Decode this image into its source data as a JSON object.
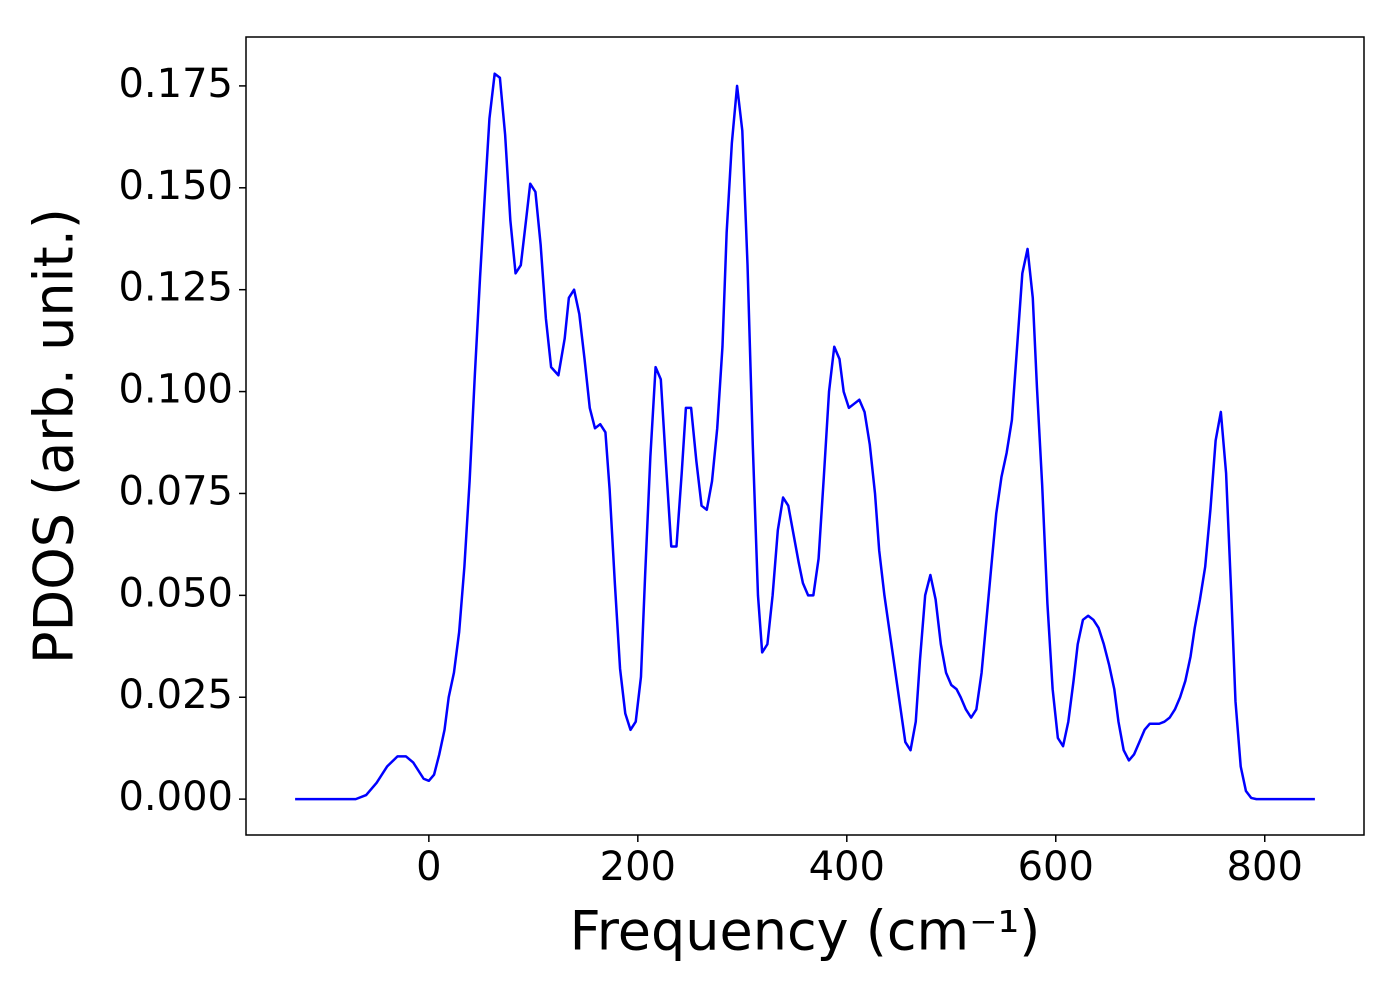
{
  "chart_data": {
    "type": "line",
    "xlabel": "Frequency (cm⁻¹)",
    "ylabel": "PDOS (arb. unit.)",
    "color": "#0000ff",
    "xlim": [
      -175,
      895
    ],
    "ylim": [
      -0.0088,
      0.187
    ],
    "xticks": [
      0,
      200,
      400,
      600,
      800
    ],
    "yticks": [
      {
        "value": 0,
        "label": "0.000"
      },
      {
        "value": 0.025,
        "label": "0.025"
      },
      {
        "value": 0.05,
        "label": "0.050"
      },
      {
        "value": 0.075,
        "label": "0.075"
      },
      {
        "value": 0.1,
        "label": "0.100"
      },
      {
        "value": 0.125,
        "label": "0.125"
      },
      {
        "value": 0.15,
        "label": "0.150"
      },
      {
        "value": 0.175,
        "label": "0.175"
      }
    ],
    "x": [
      -128,
      -100,
      -70,
      -60,
      -50,
      -40,
      -30,
      -22,
      -15,
      -5,
      0,
      5,
      10,
      15,
      19,
      24,
      29,
      34,
      39,
      44,
      49,
      54,
      58,
      63,
      68,
      73,
      78,
      83,
      88,
      93,
      97,
      102,
      107,
      112,
      117,
      124,
      130,
      134,
      139,
      144,
      149,
      154,
      159,
      164,
      169,
      173,
      178,
      183,
      188,
      193,
      198,
      203,
      207,
      212,
      217,
      222,
      227,
      232,
      237,
      242,
      246,
      251,
      256,
      261,
      266,
      271,
      276,
      281,
      285,
      290,
      295,
      300,
      305,
      310,
      315,
      319,
      324,
      329,
      334,
      339,
      344,
      349,
      354,
      358,
      363,
      368,
      373,
      378,
      383,
      388,
      393,
      397,
      402,
      407,
      412,
      417,
      422,
      427,
      431,
      436,
      441,
      446,
      451,
      456,
      461,
      466,
      470,
      475,
      480,
      485,
      490,
      495,
      500,
      505,
      509,
      514,
      519,
      524,
      529,
      534,
      539,
      543,
      548,
      553,
      558,
      563,
      568,
      573,
      578,
      582,
      587,
      592,
      597,
      602,
      607,
      612,
      617,
      621,
      626,
      631,
      636,
      641,
      646,
      651,
      656,
      660,
      665,
      670,
      675,
      680,
      685,
      690,
      694,
      699,
      704,
      709,
      714,
      719,
      724,
      729,
      733,
      738,
      743,
      748,
      753,
      758,
      763,
      768,
      772,
      777,
      782,
      787,
      792,
      848
    ],
    "values": [
      0,
      0,
      0,
      0.001,
      0.004,
      0.008,
      0.0105,
      0.0105,
      0.009,
      0.005,
      0.0045,
      0.006,
      0.011,
      0.017,
      0.025,
      0.031,
      0.041,
      0.057,
      0.078,
      0.104,
      0.128,
      0.15,
      0.167,
      0.178,
      0.177,
      0.163,
      0.142,
      0.129,
      0.131,
      0.142,
      0.151,
      0.149,
      0.136,
      0.118,
      0.106,
      0.104,
      0.113,
      0.123,
      0.125,
      0.119,
      0.108,
      0.096,
      0.091,
      0.092,
      0.09,
      0.076,
      0.053,
      0.032,
      0.021,
      0.017,
      0.019,
      0.03,
      0.055,
      0.084,
      0.106,
      0.103,
      0.082,
      0.062,
      0.062,
      0.08,
      0.096,
      0.096,
      0.083,
      0.072,
      0.071,
      0.078,
      0.091,
      0.111,
      0.139,
      0.161,
      0.175,
      0.164,
      0.131,
      0.087,
      0.05,
      0.036,
      0.038,
      0.05,
      0.066,
      0.074,
      0.072,
      0.065,
      0.058,
      0.053,
      0.05,
      0.05,
      0.059,
      0.079,
      0.1,
      0.111,
      0.108,
      0.1,
      0.096,
      0.097,
      0.098,
      0.095,
      0.087,
      0.075,
      0.061,
      0.05,
      0.041,
      0.032,
      0.023,
      0.014,
      0.012,
      0.019,
      0.034,
      0.05,
      0.055,
      0.049,
      0.038,
      0.031,
      0.028,
      0.027,
      0.025,
      0.022,
      0.02,
      0.022,
      0.031,
      0.045,
      0.059,
      0.07,
      0.079,
      0.085,
      0.093,
      0.111,
      0.129,
      0.135,
      0.123,
      0.101,
      0.077,
      0.048,
      0.027,
      0.015,
      0.013,
      0.019,
      0.029,
      0.038,
      0.044,
      0.045,
      0.044,
      0.042,
      0.038,
      0.033,
      0.027,
      0.019,
      0.012,
      0.0095,
      0.011,
      0.014,
      0.017,
      0.0185,
      0.0185,
      0.0185,
      0.019,
      0.02,
      0.022,
      0.025,
      0.029,
      0.035,
      0.042,
      0.049,
      0.057,
      0.071,
      0.088,
      0.095,
      0.08,
      0.05,
      0.024,
      0.008,
      0.002,
      0.0003,
      0,
      0
    ]
  }
}
